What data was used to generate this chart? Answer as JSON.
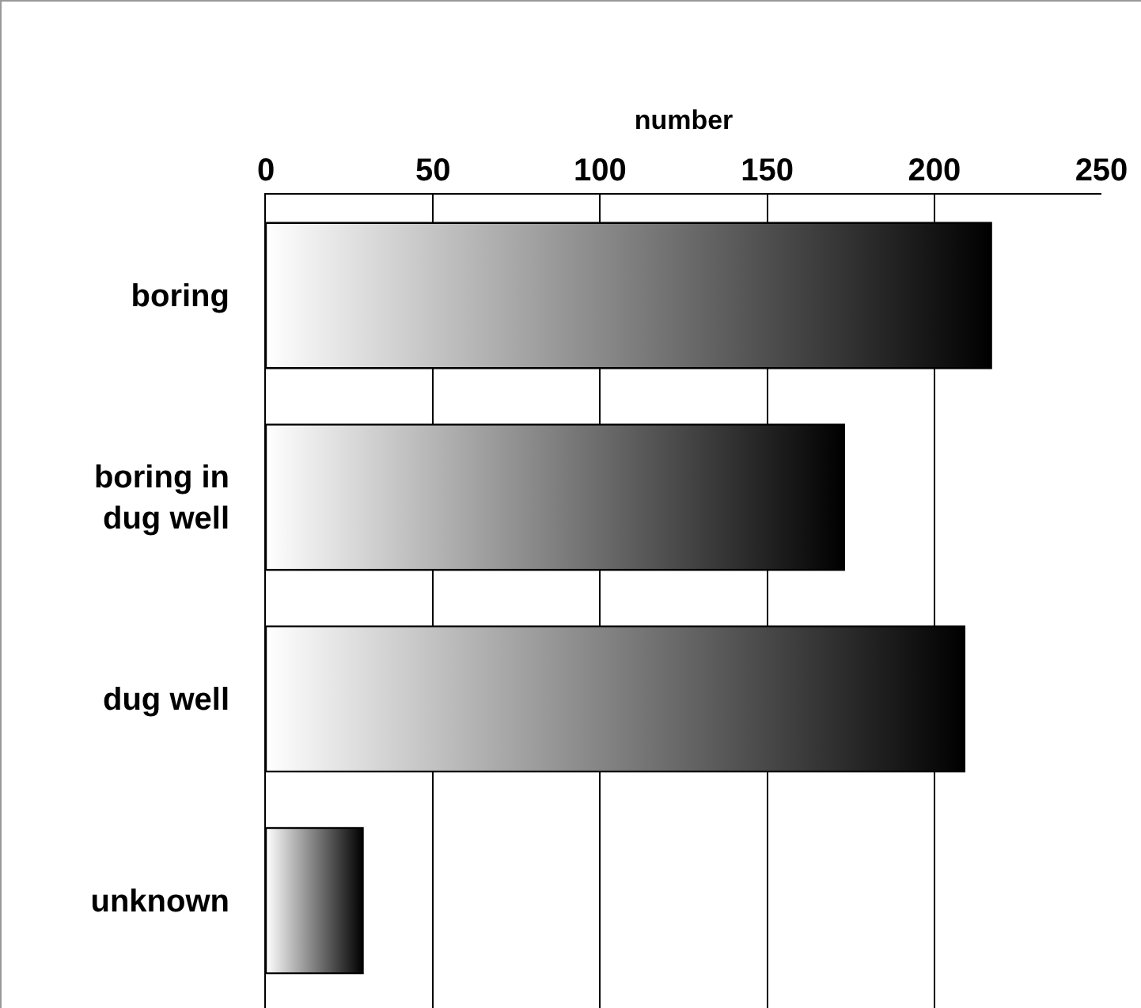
{
  "chart_data": {
    "type": "bar",
    "orientation": "horizontal",
    "xlabel": "number",
    "categories": [
      "boring",
      "boring in dug well",
      "dug well",
      "unknown"
    ],
    "values": [
      217,
      173,
      209,
      29
    ],
    "color": "#000000",
    "xlim": [
      0,
      250
    ],
    "xticks": [
      0,
      50,
      100,
      150,
      200,
      250
    ],
    "grid": "x",
    "legend": false
  }
}
